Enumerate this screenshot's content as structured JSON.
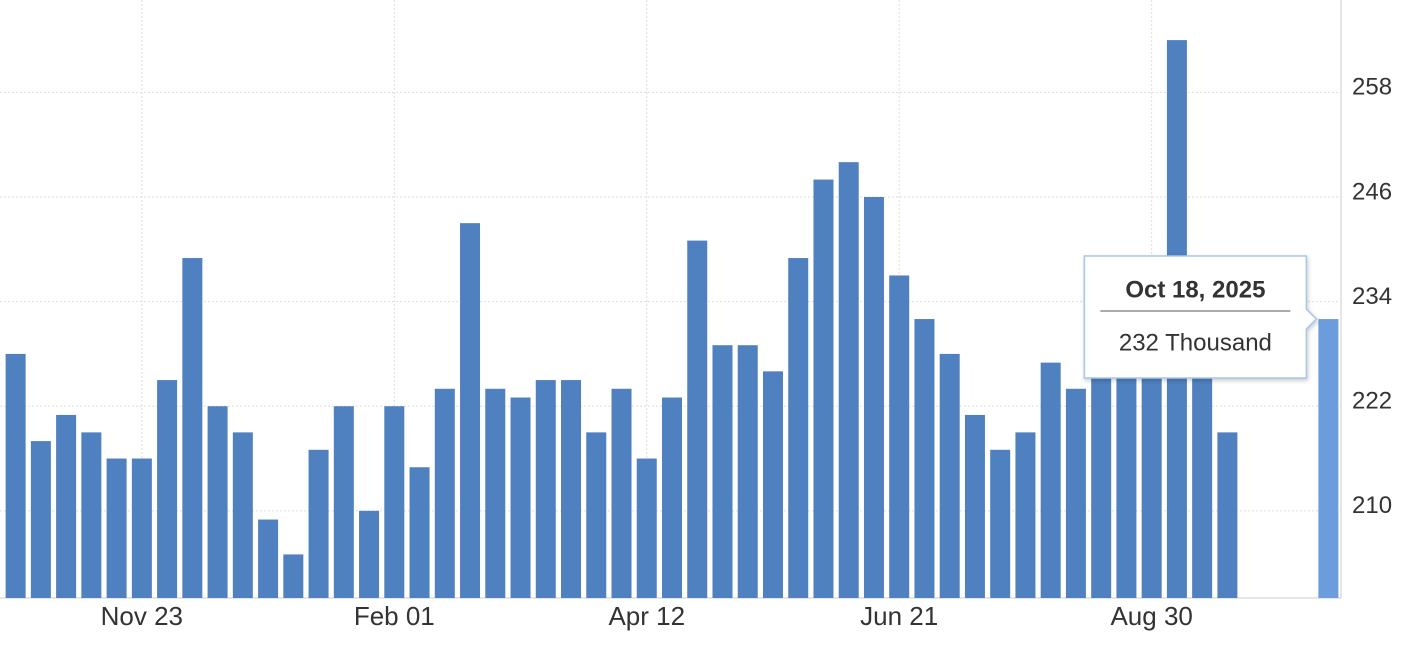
{
  "chart_data": {
    "type": "bar",
    "categories": [
      null,
      null,
      null,
      null,
      null,
      "Nov 23",
      null,
      null,
      null,
      null,
      null,
      null,
      null,
      null,
      null,
      "Feb 01",
      null,
      null,
      null,
      null,
      null,
      null,
      null,
      null,
      null,
      "Apr 12",
      null,
      null,
      null,
      null,
      null,
      null,
      null,
      null,
      null,
      "Jun 21",
      null,
      null,
      null,
      null,
      null,
      null,
      null,
      null,
      null,
      "Aug 30",
      null,
      null,
      null,
      null,
      null,
      null,
      null
    ],
    "values": [
      228,
      218,
      221,
      219,
      216,
      216,
      225,
      239,
      222,
      219,
      209,
      205,
      217,
      222,
      210,
      222,
      215,
      224,
      243,
      224,
      223,
      225,
      225,
      219,
      224,
      216,
      223,
      241,
      229,
      229,
      226,
      239,
      248,
      250,
      246,
      237,
      232,
      228,
      221,
      217,
      219,
      227,
      224,
      233,
      226,
      226,
      264,
      226,
      219,
      null,
      null,
      null,
      232
    ],
    "color": "#4f80bf",
    "highlight_color": "#6b9ddc",
    "ylim": [
      200,
      268.6
    ],
    "yticks": [
      210,
      222,
      234,
      246,
      258
    ],
    "grid": true,
    "tooltip": {
      "title": "Oct 18, 2025",
      "text": "232 Thousand"
    }
  }
}
